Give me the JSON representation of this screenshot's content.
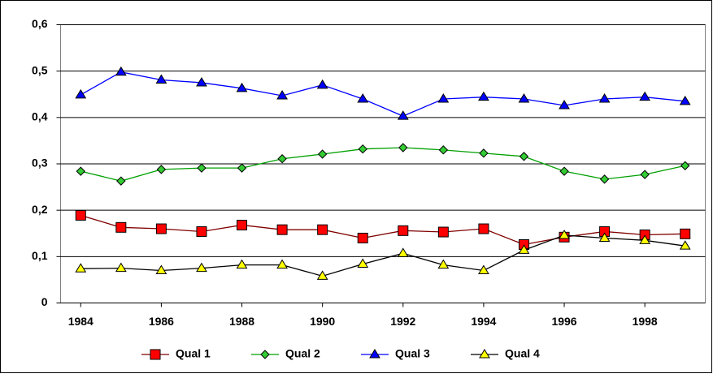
{
  "chart_data": {
    "type": "line",
    "x": [
      1984,
      1985,
      1986,
      1987,
      1988,
      1989,
      1990,
      1991,
      1992,
      1993,
      1994,
      1995,
      1996,
      1997,
      1998,
      1999
    ],
    "xlim": [
      1983.5,
      1999.5
    ],
    "xticks": [
      1984,
      1986,
      1988,
      1990,
      1992,
      1994,
      1996,
      1998
    ],
    "ylim": [
      0,
      0.6
    ],
    "yticks": [
      0,
      {
        "value": 0.1,
        "label": "0,1"
      },
      {
        "value": 0.2,
        "label": "0,2"
      },
      {
        "value": 0.3,
        "label": "0,3"
      },
      {
        "value": 0.4,
        "label": "0,4"
      },
      {
        "value": 0.5,
        "label": "0,5"
      },
      {
        "value": 0.6,
        "label": "0,6"
      }
    ],
    "grid": true,
    "legend": "bottom",
    "series": [
      {
        "name": "Qual 1",
        "color": "#ff0000",
        "line_color": "#800000",
        "marker": "square",
        "values": [
          0.189,
          0.163,
          0.16,
          0.154,
          0.168,
          0.158,
          0.158,
          0.14,
          0.156,
          0.153,
          0.16,
          0.126,
          0.142,
          0.154,
          0.147,
          0.149
        ]
      },
      {
        "name": "Qual 2",
        "color": "#33cc33",
        "line_color": "#00a000",
        "marker": "diamond",
        "values": [
          0.284,
          0.263,
          0.288,
          0.291,
          0.291,
          0.311,
          0.321,
          0.332,
          0.335,
          0.33,
          0.323,
          0.316,
          0.284,
          0.267,
          0.277,
          0.296
        ]
      },
      {
        "name": "Qual 3",
        "color": "#0000ff",
        "line_color": "#0000ff",
        "marker": "triangle",
        "values": [
          0.449,
          0.498,
          0.481,
          0.475,
          0.463,
          0.447,
          0.47,
          0.44,
          0.403,
          0.44,
          0.444,
          0.44,
          0.426,
          0.44,
          0.444,
          0.435
        ]
      },
      {
        "name": "Qual 4",
        "color": "#ffff00",
        "line_color": "#000000",
        "marker": "triangle",
        "values": [
          0.074,
          0.075,
          0.07,
          0.075,
          0.082,
          0.082,
          0.058,
          0.084,
          0.107,
          0.082,
          0.07,
          0.114,
          0.146,
          0.14,
          0.135,
          0.123
        ]
      }
    ]
  }
}
